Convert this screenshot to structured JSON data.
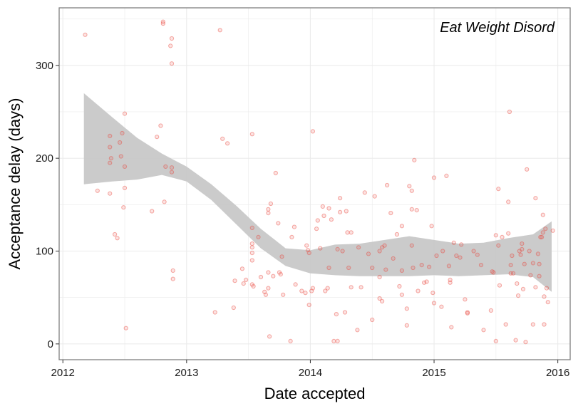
{
  "chart_data": {
    "type": "scatter",
    "title": "Eat Weight Disord",
    "xlabel": "Date accepted",
    "ylabel": "Acceptance delay (days)",
    "xlim": [
      2011.97,
      2016.1
    ],
    "ylim": [
      -17,
      362
    ],
    "x_ticks": [
      {
        "value": 2012,
        "label": "2012"
      },
      {
        "value": 2013,
        "label": "2013"
      },
      {
        "value": 2014,
        "label": "2014"
      },
      {
        "value": 2015,
        "label": "2015"
      },
      {
        "value": 2016,
        "label": "2016"
      }
    ],
    "y_ticks": [
      {
        "value": 0,
        "label": "0"
      },
      {
        "value": 100,
        "label": "100"
      },
      {
        "value": 200,
        "label": "200"
      },
      {
        "value": 300,
        "label": "300"
      }
    ],
    "grid": true,
    "colors": {
      "points": "#e8443a",
      "band": "#c8c8c8",
      "grid": "#ebebeb",
      "panel_border": "#7f7f7f"
    },
    "points": [
      [
        2012.18,
        333
      ],
      [
        2012.28,
        165
      ],
      [
        2012.38,
        224
      ],
      [
        2012.38,
        212
      ],
      [
        2012.39,
        200
      ],
      [
        2012.38,
        195
      ],
      [
        2012.38,
        162
      ],
      [
        2012.42,
        118
      ],
      [
        2012.44,
        114
      ],
      [
        2012.46,
        217
      ],
      [
        2012.47,
        202
      ],
      [
        2012.48,
        227
      ],
      [
        2012.49,
        147
      ],
      [
        2012.5,
        191
      ],
      [
        2012.5,
        168
      ],
      [
        2012.5,
        248
      ],
      [
        2012.51,
        17
      ],
      [
        2012.72,
        143
      ],
      [
        2012.76,
        223
      ],
      [
        2012.79,
        235
      ],
      [
        2012.81,
        347
      ],
      [
        2012.81,
        345
      ],
      [
        2012.82,
        153
      ],
      [
        2012.83,
        191
      ],
      [
        2012.88,
        190
      ],
      [
        2012.88,
        185
      ],
      [
        2012.87,
        321
      ],
      [
        2012.88,
        329
      ],
      [
        2012.88,
        302
      ],
      [
        2012.89,
        79
      ],
      [
        2012.89,
        70
      ],
      [
        2013.23,
        34
      ],
      [
        2013.27,
        338
      ],
      [
        2013.29,
        221
      ],
      [
        2013.33,
        216
      ],
      [
        2013.38,
        39
      ],
      [
        2013.39,
        68
      ],
      [
        2013.45,
        81
      ],
      [
        2013.46,
        65
      ],
      [
        2013.48,
        69
      ],
      [
        2013.53,
        226
      ],
      [
        2013.53,
        125
      ],
      [
        2013.53,
        108
      ],
      [
        2013.53,
        104
      ],
      [
        2013.53,
        98
      ],
      [
        2013.53,
        90
      ],
      [
        2013.53,
        64
      ],
      [
        2013.54,
        62
      ],
      [
        2013.58,
        115
      ],
      [
        2013.6,
        72
      ],
      [
        2013.63,
        56
      ],
      [
        2013.64,
        53
      ],
      [
        2013.66,
        145
      ],
      [
        2013.66,
        141
      ],
      [
        2013.66,
        77
      ],
      [
        2013.66,
        60
      ],
      [
        2013.67,
        8
      ],
      [
        2013.68,
        151
      ],
      [
        2013.7,
        73
      ],
      [
        2013.72,
        184
      ],
      [
        2013.74,
        130
      ],
      [
        2013.75,
        77
      ],
      [
        2013.76,
        75
      ],
      [
        2013.77,
        94
      ],
      [
        2013.78,
        53
      ],
      [
        2013.84,
        3
      ],
      [
        2013.85,
        115
      ],
      [
        2013.87,
        126
      ],
      [
        2013.88,
        64
      ],
      [
        2013.93,
        57
      ],
      [
        2013.96,
        55
      ],
      [
        2013.97,
        106
      ],
      [
        2013.98,
        101
      ],
      [
        2013.99,
        98
      ],
      [
        2013.99,
        42
      ],
      [
        2014.01,
        57
      ],
      [
        2014.02,
        60
      ],
      [
        2014.02,
        229
      ],
      [
        2014.05,
        124
      ],
      [
        2014.06,
        133
      ],
      [
        2014.08,
        103
      ],
      [
        2014.1,
        148
      ],
      [
        2014.11,
        138
      ],
      [
        2014.12,
        57
      ],
      [
        2014.14,
        60
      ],
      [
        2014.15,
        146
      ],
      [
        2014.15,
        82
      ],
      [
        2014.17,
        134
      ],
      [
        2014.19,
        3
      ],
      [
        2014.21,
        32
      ],
      [
        2014.22,
        102
      ],
      [
        2014.22,
        3
      ],
      [
        2014.24,
        157
      ],
      [
        2014.24,
        142
      ],
      [
        2014.26,
        100
      ],
      [
        2014.28,
        34
      ],
      [
        2014.29,
        143
      ],
      [
        2014.3,
        120
      ],
      [
        2014.31,
        82
      ],
      [
        2014.33,
        120
      ],
      [
        2014.33,
        61
      ],
      [
        2014.38,
        15
      ],
      [
        2014.39,
        104
      ],
      [
        2014.41,
        61
      ],
      [
        2014.44,
        163
      ],
      [
        2014.47,
        97
      ],
      [
        2014.5,
        26
      ],
      [
        2014.5,
        82
      ],
      [
        2014.52,
        159
      ],
      [
        2014.56,
        100
      ],
      [
        2014.56,
        72
      ],
      [
        2014.56,
        49
      ],
      [
        2014.58,
        104
      ],
      [
        2014.58,
        46
      ],
      [
        2014.6,
        106
      ],
      [
        2014.61,
        80
      ],
      [
        2014.62,
        171
      ],
      [
        2014.65,
        141
      ],
      [
        2014.67,
        92
      ],
      [
        2014.7,
        118
      ],
      [
        2014.72,
        62
      ],
      [
        2014.74,
        127
      ],
      [
        2014.74,
        79
      ],
      [
        2014.74,
        53
      ],
      [
        2014.78,
        38
      ],
      [
        2014.78,
        20
      ],
      [
        2014.8,
        170
      ],
      [
        2014.82,
        165
      ],
      [
        2014.82,
        145
      ],
      [
        2014.82,
        106
      ],
      [
        2014.83,
        82
      ],
      [
        2014.84,
        198
      ],
      [
        2014.86,
        144
      ],
      [
        2014.87,
        57
      ],
      [
        2014.9,
        85
      ],
      [
        2014.92,
        66
      ],
      [
        2014.94,
        67
      ],
      [
        2014.96,
        83
      ],
      [
        2014.98,
        127
      ],
      [
        2014.99,
        55
      ],
      [
        2015.0,
        179
      ],
      [
        2015.0,
        44
      ],
      [
        2015.02,
        95
      ],
      [
        2015.06,
        40
      ],
      [
        2015.07,
        100
      ],
      [
        2015.1,
        181
      ],
      [
        2015.12,
        84
      ],
      [
        2015.13,
        69
      ],
      [
        2015.13,
        66
      ],
      [
        2015.14,
        18
      ],
      [
        2015.16,
        109
      ],
      [
        2015.18,
        95
      ],
      [
        2015.21,
        93
      ],
      [
        2015.22,
        107
      ],
      [
        2015.25,
        48
      ],
      [
        2015.27,
        33
      ],
      [
        2015.27,
        34
      ],
      [
        2015.32,
        100
      ],
      [
        2015.35,
        96
      ],
      [
        2015.38,
        85
      ],
      [
        2015.4,
        15
      ],
      [
        2015.46,
        36
      ],
      [
        2015.47,
        78
      ],
      [
        2015.48,
        77
      ],
      [
        2015.5,
        3
      ],
      [
        2015.5,
        117
      ],
      [
        2015.52,
        167
      ],
      [
        2015.52,
        106
      ],
      [
        2015.53,
        63
      ],
      [
        2015.55,
        115
      ],
      [
        2015.58,
        21
      ],
      [
        2015.6,
        153
      ],
      [
        2015.6,
        119
      ],
      [
        2015.61,
        250
      ],
      [
        2015.62,
        85
      ],
      [
        2015.62,
        76
      ],
      [
        2015.63,
        95
      ],
      [
        2015.64,
        76
      ],
      [
        2015.66,
        4
      ],
      [
        2015.67,
        65
      ],
      [
        2015.68,
        52
      ],
      [
        2015.69,
        100
      ],
      [
        2015.7,
        96
      ],
      [
        2015.71,
        102
      ],
      [
        2015.71,
        108
      ],
      [
        2015.72,
        59
      ],
      [
        2015.73,
        86
      ],
      [
        2015.74,
        2
      ],
      [
        2015.75,
        188
      ],
      [
        2015.77,
        100
      ],
      [
        2015.78,
        74
      ],
      [
        2015.8,
        87
      ],
      [
        2015.8,
        21
      ],
      [
        2015.82,
        157
      ],
      [
        2015.82,
        61
      ],
      [
        2015.84,
        97
      ],
      [
        2015.85,
        73
      ],
      [
        2015.85,
        86
      ],
      [
        2015.86,
        115
      ],
      [
        2015.87,
        115
      ],
      [
        2015.88,
        120
      ],
      [
        2015.88,
        139
      ],
      [
        2015.89,
        51
      ],
      [
        2015.89,
        21
      ],
      [
        2015.9,
        124
      ],
      [
        2015.91,
        60
      ],
      [
        2015.92,
        45
      ],
      [
        2015.96,
        122
      ]
    ],
    "smooth": {
      "x": [
        2012.17,
        2012.4,
        2012.6,
        2012.8,
        2013.0,
        2013.2,
        2013.4,
        2013.6,
        2013.8,
        2014.0,
        2014.2,
        2014.4,
        2014.6,
        2014.8,
        2015.0,
        2015.2,
        2015.4,
        2015.6,
        2015.8,
        2015.95
      ],
      "lower": [
        172,
        175,
        177,
        182,
        175,
        155,
        129,
        103,
        84,
        76,
        74,
        73,
        73,
        73,
        74,
        73,
        74,
        75,
        72,
        56
      ],
      "upper": [
        270,
        244,
        222,
        205,
        191,
        172,
        149,
        124,
        103,
        101,
        107,
        108,
        112,
        116,
        112,
        108,
        109,
        114,
        118,
        132
      ]
    }
  }
}
